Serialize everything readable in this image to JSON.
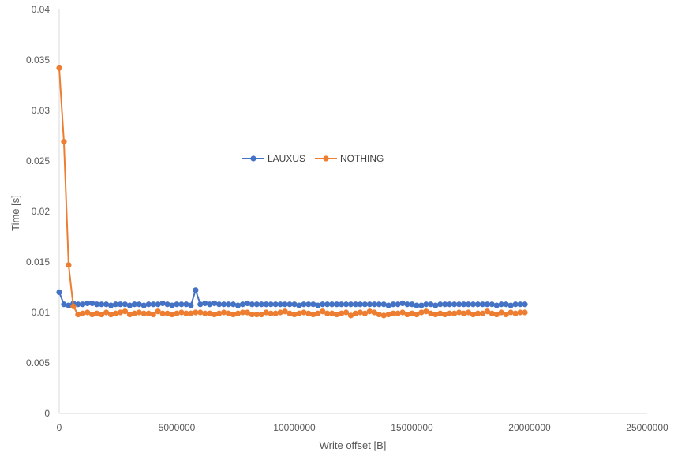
{
  "chart_data": {
    "type": "line",
    "title": "",
    "xlabel": "Write offset [B]",
    "ylabel": "Time [s]",
    "xlim": [
      0,
      25000000
    ],
    "ylim": [
      0,
      0.04
    ],
    "x_ticks": [
      0,
      5000000,
      10000000,
      15000000,
      20000000,
      25000000
    ],
    "x_tick_labels": [
      "0",
      "5000000",
      "10000000",
      "15000000",
      "20000000",
      "25000000"
    ],
    "y_ticks": [
      0,
      0.005,
      0.01,
      0.015,
      0.02,
      0.025,
      0.03,
      0.035,
      0.04
    ],
    "y_tick_labels": [
      "0",
      "0.005",
      "0.01",
      "0.015",
      "0.02",
      "0.025",
      "0.03",
      "0.035",
      "0.04"
    ],
    "grid": false,
    "legend_position": "center",
    "x": [
      0,
      200000,
      400000,
      600000,
      800000,
      1000000,
      1200000,
      1400000,
      1600000,
      1800000,
      2000000,
      2200000,
      2400000,
      2600000,
      2800000,
      3000000,
      3200000,
      3400000,
      3600000,
      3800000,
      4000000,
      4200000,
      4400000,
      4600000,
      4800000,
      5000000,
      5200000,
      5400000,
      5600000,
      5800000,
      6000000,
      6200000,
      6400000,
      6600000,
      6800000,
      7000000,
      7200000,
      7400000,
      7600000,
      7800000,
      8000000,
      8200000,
      8400000,
      8600000,
      8800000,
      9000000,
      9200000,
      9400000,
      9600000,
      9800000,
      10000000,
      10200000,
      10400000,
      10600000,
      10800000,
      11000000,
      11200000,
      11400000,
      11600000,
      11800000,
      12000000,
      12200000,
      12400000,
      12600000,
      12800000,
      13000000,
      13200000,
      13400000,
      13600000,
      13800000,
      14000000,
      14200000,
      14400000,
      14600000,
      14800000,
      15000000,
      15200000,
      15400000,
      15600000,
      15800000,
      16000000,
      16200000,
      16400000,
      16600000,
      16800000,
      17000000,
      17200000,
      17400000,
      17600000,
      17800000,
      18000000,
      18200000,
      18400000,
      18600000,
      18800000,
      19000000,
      19200000,
      19400000,
      19600000,
      19800000
    ],
    "series": [
      {
        "name": "LAUXUS",
        "color": "#4472C4",
        "values": [
          0.012,
          0.0108,
          0.0107,
          0.0109,
          0.0108,
          0.0108,
          0.0109,
          0.0109,
          0.0108,
          0.0108,
          0.0108,
          0.0107,
          0.0108,
          0.0108,
          0.0108,
          0.0107,
          0.0108,
          0.0108,
          0.0107,
          0.0108,
          0.0108,
          0.0108,
          0.0109,
          0.0108,
          0.0107,
          0.0108,
          0.0108,
          0.0108,
          0.0107,
          0.0122,
          0.0108,
          0.0109,
          0.0108,
          0.0109,
          0.0108,
          0.0108,
          0.0108,
          0.0108,
          0.0107,
          0.0108,
          0.0109,
          0.0108,
          0.0108,
          0.0108,
          0.0108,
          0.0108,
          0.0108,
          0.0108,
          0.0108,
          0.0108,
          0.0108,
          0.0107,
          0.0108,
          0.0108,
          0.0108,
          0.0107,
          0.0108,
          0.0108,
          0.0108,
          0.0108,
          0.0108,
          0.0108,
          0.0108,
          0.0108,
          0.0108,
          0.0108,
          0.0108,
          0.0108,
          0.0108,
          0.0108,
          0.0107,
          0.0108,
          0.0108,
          0.0109,
          0.0108,
          0.0108,
          0.0107,
          0.0107,
          0.0108,
          0.0108,
          0.0107,
          0.0108,
          0.0108,
          0.0108,
          0.0108,
          0.0108,
          0.0108,
          0.0108,
          0.0108,
          0.0108,
          0.0108,
          0.0108,
          0.0108,
          0.0107,
          0.0108,
          0.0108,
          0.0107,
          0.0108,
          0.0108,
          0.0108
        ]
      },
      {
        "name": "NOTHING",
        "color": "#ED7D31",
        "values": [
          0.0342,
          0.0269,
          0.0147,
          0.0106,
          0.0098,
          0.0099,
          0.01,
          0.0098,
          0.0099,
          0.0098,
          0.01,
          0.0098,
          0.0099,
          0.01,
          0.0101,
          0.0098,
          0.0099,
          0.01,
          0.0099,
          0.0099,
          0.0098,
          0.0101,
          0.0099,
          0.0099,
          0.0098,
          0.0099,
          0.01,
          0.0099,
          0.0099,
          0.01,
          0.01,
          0.0099,
          0.0099,
          0.0098,
          0.0099,
          0.01,
          0.0099,
          0.0098,
          0.0099,
          0.01,
          0.01,
          0.0098,
          0.0098,
          0.0098,
          0.01,
          0.0099,
          0.0099,
          0.01,
          0.0101,
          0.0099,
          0.0098,
          0.0099,
          0.01,
          0.0099,
          0.0098,
          0.0099,
          0.0101,
          0.0099,
          0.0099,
          0.0098,
          0.0099,
          0.01,
          0.0097,
          0.0099,
          0.01,
          0.0099,
          0.0101,
          0.01,
          0.0098,
          0.0097,
          0.0098,
          0.0099,
          0.0099,
          0.01,
          0.0098,
          0.0099,
          0.0098,
          0.01,
          0.0101,
          0.0099,
          0.0098,
          0.0099,
          0.0098,
          0.0099,
          0.0099,
          0.01,
          0.0099,
          0.01,
          0.0098,
          0.0099,
          0.0099,
          0.0101,
          0.0099,
          0.0098,
          0.01,
          0.0098,
          0.01,
          0.0099,
          0.01,
          0.01
        ]
      }
    ],
    "axis_color": "#D9D9D9",
    "text_color": "#595959"
  }
}
